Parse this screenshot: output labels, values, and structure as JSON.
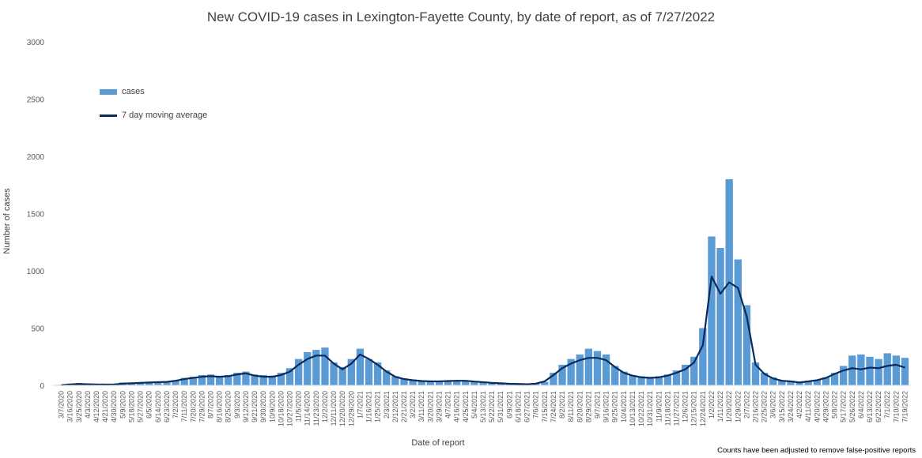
{
  "chart_data": {
    "type": "bar",
    "title": "New COVID-19 cases in Lexington-Fayette County, by date of report, as of 7/27/2022",
    "xlabel": "Date of report",
    "ylabel": "Number of cases",
    "ylim": [
      0,
      3000
    ],
    "yticks": [
      0,
      500,
      1000,
      1500,
      2000,
      2500,
      3000
    ],
    "grid": false,
    "legend_position": "top-left",
    "footnote": "Counts have been adjusted to remove false-positive reports",
    "colors": {
      "bars": "#5b9bd5",
      "line": "#0b2a5c"
    },
    "x_tick_labels": [
      "3/7/2020",
      "3/16/2020",
      "3/25/2020",
      "4/3/2020",
      "4/12/2020",
      "4/21/2020",
      "4/30/2020",
      "5/9/2020",
      "5/18/2020",
      "5/27/2020",
      "6/5/2020",
      "6/14/2020",
      "6/23/2020",
      "7/2/2020",
      "7/11/2020",
      "7/20/2020",
      "7/29/2020",
      "8/7/2020",
      "8/16/2020",
      "8/25/2020",
      "9/3/2020",
      "9/12/2020",
      "9/21/2020",
      "9/30/2020",
      "10/9/2020",
      "10/18/2020",
      "10/27/2020",
      "11/5/2020",
      "11/14/2020",
      "11/23/2020",
      "12/2/2020",
      "12/11/2020",
      "12/20/2020",
      "12/29/2020",
      "1/7/2021",
      "1/16/2021",
      "1/25/2021",
      "2/3/2021",
      "2/12/2021",
      "2/21/2021",
      "3/2/2021",
      "3/11/2021",
      "3/20/2021",
      "3/29/2021",
      "4/7/2021",
      "4/16/2021",
      "4/25/2021",
      "5/4/2021",
      "5/13/2021",
      "5/22/2021",
      "5/31/2021",
      "6/9/2021",
      "6/18/2021",
      "6/27/2021",
      "7/6/2021",
      "7/15/2021",
      "7/24/2021",
      "8/2/2021",
      "8/11/2021",
      "8/20/2021",
      "8/29/2021",
      "9/7/2021",
      "9/16/2021",
      "9/25/2021",
      "10/4/2021",
      "10/13/2021",
      "10/22/2021",
      "10/31/2021",
      "11/9/2021",
      "11/18/2021",
      "11/27/2021",
      "12/6/2021",
      "12/15/2021",
      "12/24/2021",
      "1/2/2022",
      "1/11/2022",
      "1/20/2022",
      "1/29/2022",
      "2/7/2022",
      "2/16/2022",
      "2/25/2022",
      "3/6/2022",
      "3/15/2022",
      "3/24/2022",
      "4/2/2022",
      "4/11/2022",
      "4/20/2022",
      "4/29/2022",
      "5/8/2022",
      "5/17/2022",
      "5/26/2022",
      "6/4/2022",
      "6/13/2022",
      "6/22/2022",
      "7/1/2022",
      "7/10/2022",
      "7/19/2022"
    ],
    "series": [
      {
        "name": "cases",
        "type": "bar",
        "note": "approximate values, one per 9-day tick interval",
        "x": [
          "3/7/2020",
          "3/16/2020",
          "3/25/2020",
          "4/3/2020",
          "4/12/2020",
          "4/21/2020",
          "4/30/2020",
          "5/9/2020",
          "5/18/2020",
          "5/27/2020",
          "6/5/2020",
          "6/14/2020",
          "6/23/2020",
          "7/2/2020",
          "7/11/2020",
          "7/20/2020",
          "7/29/2020",
          "8/7/2020",
          "8/16/2020",
          "8/25/2020",
          "9/3/2020",
          "9/12/2020",
          "9/21/2020",
          "9/30/2020",
          "10/9/2020",
          "10/18/2020",
          "10/27/2020",
          "11/5/2020",
          "11/14/2020",
          "11/23/2020",
          "12/2/2020",
          "12/11/2020",
          "12/20/2020",
          "12/29/2020",
          "1/7/2021",
          "1/16/2021",
          "1/25/2021",
          "2/3/2021",
          "2/12/2021",
          "2/21/2021",
          "3/2/2021",
          "3/11/2021",
          "3/20/2021",
          "3/29/2021",
          "4/7/2021",
          "4/16/2021",
          "4/25/2021",
          "5/4/2021",
          "5/13/2021",
          "5/22/2021",
          "5/31/2021",
          "6/9/2021",
          "6/18/2021",
          "6/27/2021",
          "7/6/2021",
          "7/15/2021",
          "7/24/2021",
          "8/2/2021",
          "8/11/2021",
          "8/20/2021",
          "8/29/2021",
          "9/7/2021",
          "9/16/2021",
          "9/25/2021",
          "10/4/2021",
          "10/13/2021",
          "10/22/2021",
          "10/31/2021",
          "11/9/2021",
          "11/18/2021",
          "11/27/2021",
          "12/6/2021",
          "12/15/2021",
          "12/24/2021",
          "1/2/2022",
          "1/11/2022",
          "1/20/2022",
          "1/29/2022",
          "2/7/2022",
          "2/16/2022",
          "2/25/2022",
          "3/6/2022",
          "3/15/2022",
          "3/24/2022",
          "4/2/2022",
          "4/11/2022",
          "4/20/2022",
          "4/29/2022",
          "5/8/2022",
          "5/17/2022",
          "5/26/2022",
          "6/4/2022",
          "6/13/2022",
          "6/22/2022",
          "7/1/2022",
          "7/10/2022",
          "7/19/2022"
        ],
        "values": [
          5,
          15,
          20,
          15,
          10,
          8,
          10,
          25,
          20,
          25,
          30,
          35,
          35,
          45,
          65,
          75,
          90,
          95,
          80,
          90,
          110,
          120,
          95,
          90,
          85,
          110,
          150,
          230,
          290,
          310,
          330,
          200,
          160,
          230,
          320,
          230,
          200,
          130,
          80,
          60,
          50,
          40,
          40,
          35,
          40,
          45,
          45,
          35,
          30,
          25,
          20,
          15,
          15,
          10,
          15,
          30,
          110,
          180,
          230,
          270,
          320,
          300,
          270,
          170,
          120,
          90,
          80,
          75,
          80,
          95,
          130,
          180,
          250,
          500,
          1300,
          1200,
          1800,
          1100,
          700,
          200,
          110,
          70,
          45,
          40,
          30,
          40,
          45,
          70,
          110,
          170,
          260,
          270,
          250,
          230,
          280,
          260,
          240
        ]
      },
      {
        "name": "7 day moving average",
        "type": "line",
        "note": "approximate values, one per 9-day tick interval",
        "x": [
          "3/7/2020",
          "3/16/2020",
          "3/25/2020",
          "4/3/2020",
          "4/12/2020",
          "4/21/2020",
          "4/30/2020",
          "5/9/2020",
          "5/18/2020",
          "5/27/2020",
          "6/5/2020",
          "6/14/2020",
          "6/23/2020",
          "7/2/2020",
          "7/11/2020",
          "7/20/2020",
          "7/29/2020",
          "8/7/2020",
          "8/16/2020",
          "8/25/2020",
          "9/3/2020",
          "9/12/2020",
          "9/21/2020",
          "9/30/2020",
          "10/9/2020",
          "10/18/2020",
          "10/27/2020",
          "11/5/2020",
          "11/14/2020",
          "11/23/2020",
          "12/2/2020",
          "12/11/2020",
          "12/20/2020",
          "12/29/2020",
          "1/7/2021",
          "1/16/2021",
          "1/25/2021",
          "2/3/2021",
          "2/12/2021",
          "2/21/2021",
          "3/2/2021",
          "3/11/2021",
          "3/20/2021",
          "3/29/2021",
          "4/7/2021",
          "4/16/2021",
          "4/25/2021",
          "5/4/2021",
          "5/13/2021",
          "5/22/2021",
          "5/31/2021",
          "6/9/2021",
          "6/18/2021",
          "6/27/2021",
          "7/6/2021",
          "7/15/2021",
          "7/24/2021",
          "8/2/2021",
          "8/11/2021",
          "8/20/2021",
          "8/29/2021",
          "9/7/2021",
          "9/16/2021",
          "9/25/2021",
          "10/4/2021",
          "10/13/2021",
          "10/22/2021",
          "10/31/2021",
          "11/9/2021",
          "11/18/2021",
          "11/27/2021",
          "12/6/2021",
          "12/15/2021",
          "12/24/2021",
          "1/2/2022",
          "1/11/2022",
          "1/20/2022",
          "1/29/2022",
          "2/7/2022",
          "2/16/2022",
          "2/25/2022",
          "3/6/2022",
          "3/15/2022",
          "3/24/2022",
          "4/2/2022",
          "4/11/2022",
          "4/20/2022",
          "4/29/2022",
          "5/8/2022",
          "5/17/2022",
          "5/26/2022",
          "6/4/2022",
          "6/13/2022",
          "6/22/2022",
          "7/1/2022",
          "7/10/2022",
          "7/19/2022"
        ],
        "values": [
          2,
          8,
          12,
          10,
          8,
          7,
          8,
          15,
          18,
          22,
          25,
          28,
          30,
          40,
          55,
          65,
          75,
          80,
          75,
          80,
          95,
          105,
          85,
          75,
          75,
          90,
          120,
          180,
          230,
          260,
          260,
          190,
          140,
          190,
          270,
          230,
          180,
          120,
          75,
          55,
          45,
          38,
          35,
          35,
          38,
          40,
          40,
          33,
          28,
          22,
          18,
          14,
          12,
          10,
          15,
          35,
          90,
          150,
          190,
          220,
          240,
          240,
          220,
          160,
          110,
          85,
          70,
          65,
          70,
          85,
          110,
          140,
          200,
          350,
          950,
          800,
          900,
          850,
          600,
          180,
          100,
          60,
          40,
          35,
          25,
          35,
          45,
          65,
          100,
          130,
          150,
          140,
          155,
          150,
          170,
          180,
          155
        ]
      }
    ]
  }
}
